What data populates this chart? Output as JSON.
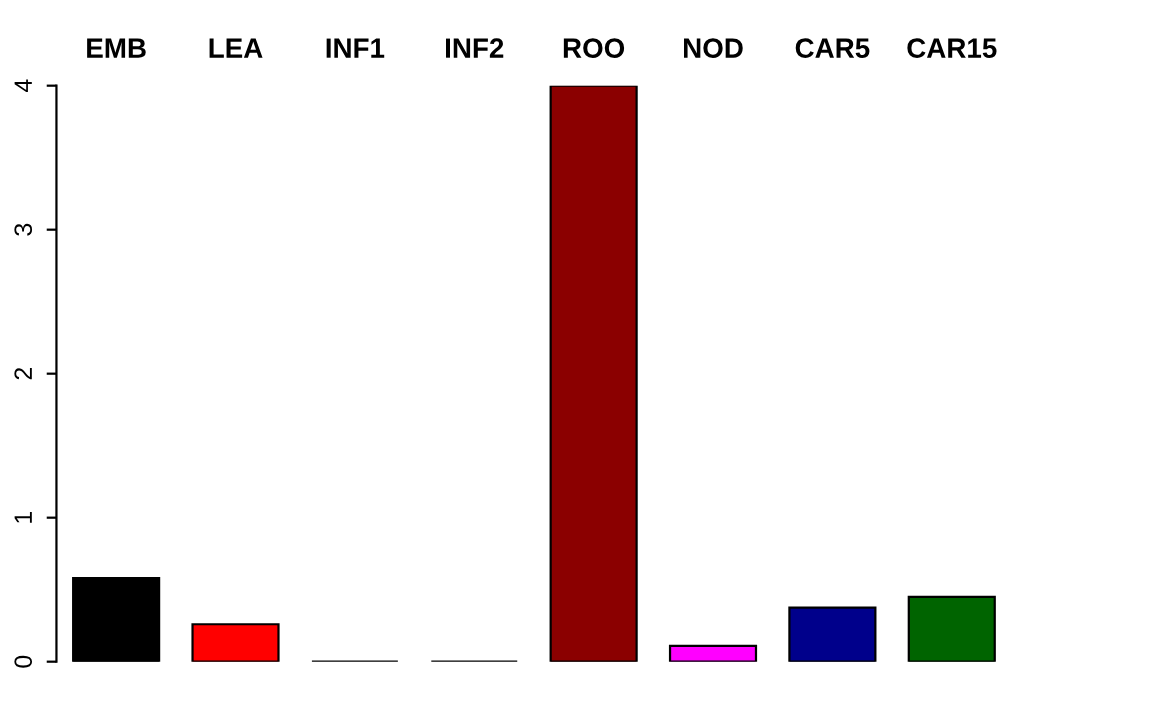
{
  "chart_data": {
    "type": "bar",
    "categories": [
      "EMB",
      "LEA",
      "INF1",
      "INF2",
      "ROO",
      "NOD",
      "CAR5",
      "CAR15"
    ],
    "values": [
      0.58,
      0.26,
      0,
      0,
      4.0,
      0.11,
      0.375,
      0.45
    ],
    "colors": [
      "#000000",
      "#ff0000",
      null,
      null,
      "#8b0000",
      "#ff00ff",
      "#00008b",
      "#006400"
    ],
    "ylim": [
      0,
      4
    ],
    "yticks": [
      0,
      1,
      2,
      3,
      4
    ],
    "grid": false,
    "legend": false
  }
}
